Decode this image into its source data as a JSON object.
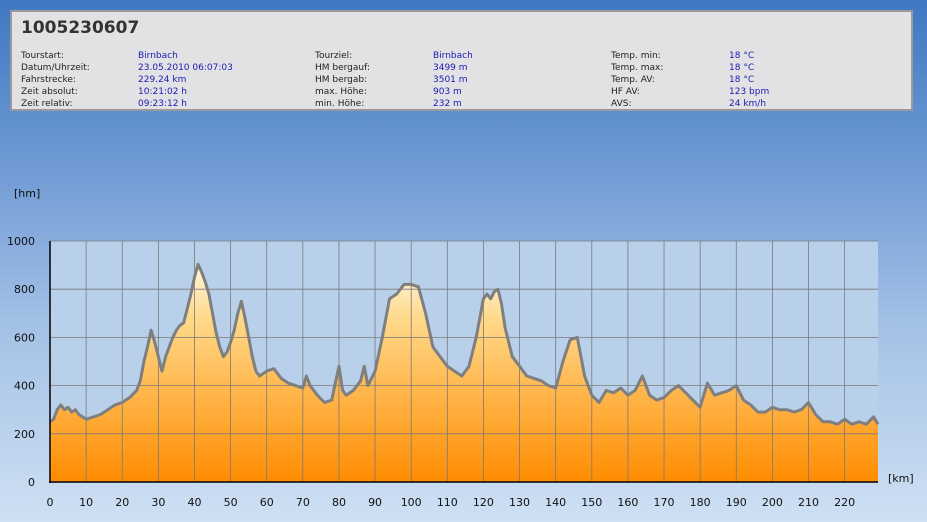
{
  "tour_id": "1005230607",
  "info": {
    "columns": [
      [
        {
          "label": "Tourstart:",
          "value": "Birnbach"
        },
        {
          "label": "Datum/Uhrzeit:",
          "value": "23.05.2010 06:07:03"
        },
        {
          "label": "Fahrstrecke:",
          "value": "229.24 km"
        },
        {
          "label": "Zeit absolut:",
          "value": "10:21:02 h"
        },
        {
          "label": "Zeit relativ:",
          "value": "09:23:12 h"
        }
      ],
      [
        {
          "label": "Tourziel:",
          "value": "Birnbach"
        },
        {
          "label": "HM bergauf:",
          "value": "3499 m"
        },
        {
          "label": "HM bergab:",
          "value": "3501 m"
        },
        {
          "label": "max. Höhe:",
          "value": "903 m"
        },
        {
          "label": "min. Höhe:",
          "value": "232 m"
        }
      ],
      [
        {
          "label": "Temp. min:",
          "value": "18 °C"
        },
        {
          "label": "Temp. max:",
          "value": "18 °C"
        },
        {
          "label": "Temp. AV:",
          "value": "18 °C"
        },
        {
          "label": "HF AV:",
          "value": "123 bpm"
        },
        {
          "label": "AVS:",
          "value": "24 km/h"
        }
      ]
    ]
  },
  "colors": {
    "fill_top": "#fff6e0",
    "fill_bottom": "#ff8c00",
    "line": "#7f7f7f",
    "grid": "#7a7a7a"
  },
  "chart_data": {
    "type": "area",
    "xlabel": "[km]",
    "ylabel": "[hm]",
    "xlim": [
      0,
      229.24
    ],
    "ylim": [
      0,
      1000
    ],
    "x_ticks": [
      0,
      10,
      20,
      30,
      40,
      50,
      60,
      70,
      80,
      90,
      100,
      110,
      120,
      130,
      140,
      150,
      160,
      170,
      180,
      190,
      200,
      210,
      220
    ],
    "y_ticks": [
      0,
      200,
      400,
      600,
      800,
      1000
    ],
    "grid": true,
    "x": [
      0,
      1,
      2,
      3,
      4,
      5,
      6,
      7,
      8,
      9,
      10,
      12,
      14,
      16,
      18,
      20,
      22,
      24,
      25,
      26,
      27,
      28,
      29,
      30,
      31,
      32,
      33,
      34,
      35,
      36,
      37,
      38,
      39,
      40,
      41,
      42,
      43,
      44,
      45,
      46,
      47,
      48,
      49,
      50,
      51,
      52,
      53,
      54,
      55,
      56,
      57,
      58,
      59,
      60,
      62,
      64,
      66,
      68,
      70,
      71,
      72,
      74,
      76,
      78,
      79,
      80,
      81,
      82,
      84,
      86,
      87,
      88,
      90,
      92,
      94,
      96,
      98,
      100,
      102,
      104,
      106,
      108,
      110,
      112,
      114,
      116,
      118,
      120,
      121,
      122,
      123,
      124,
      125,
      126,
      128,
      130,
      132,
      134,
      136,
      138,
      140,
      142,
      144,
      146,
      148,
      150,
      152,
      154,
      156,
      158,
      160,
      162,
      164,
      166,
      168,
      170,
      172,
      174,
      176,
      178,
      180,
      182,
      184,
      186,
      188,
      190,
      192,
      194,
      196,
      198,
      200,
      202,
      204,
      206,
      208,
      210,
      212,
      214,
      216,
      218,
      220,
      222,
      224,
      226,
      228,
      229.24
    ],
    "y": [
      250,
      260,
      300,
      320,
      300,
      310,
      290,
      300,
      280,
      270,
      260,
      270,
      280,
      300,
      320,
      330,
      350,
      380,
      420,
      500,
      560,
      630,
      580,
      520,
      460,
      520,
      560,
      600,
      630,
      650,
      660,
      720,
      780,
      850,
      903,
      870,
      830,
      780,
      700,
      620,
      560,
      520,
      540,
      580,
      630,
      700,
      750,
      680,
      600,
      520,
      460,
      440,
      450,
      460,
      470,
      430,
      410,
      400,
      390,
      440,
      400,
      360,
      330,
      340,
      410,
      480,
      380,
      360,
      380,
      420,
      480,
      400,
      460,
      600,
      760,
      780,
      820,
      820,
      810,
      700,
      560,
      520,
      480,
      460,
      440,
      480,
      600,
      760,
      780,
      760,
      790,
      800,
      740,
      640,
      520,
      480,
      440,
      430,
      420,
      400,
      390,
      500,
      590,
      600,
      440,
      360,
      330,
      380,
      370,
      390,
      360,
      380,
      440,
      360,
      340,
      350,
      380,
      400,
      370,
      340,
      310,
      410,
      360,
      370,
      380,
      400,
      340,
      320,
      290,
      290,
      310,
      300,
      300,
      290,
      300,
      330,
      280,
      250,
      250,
      240,
      260,
      240,
      250,
      240,
      270,
      240
    ]
  }
}
